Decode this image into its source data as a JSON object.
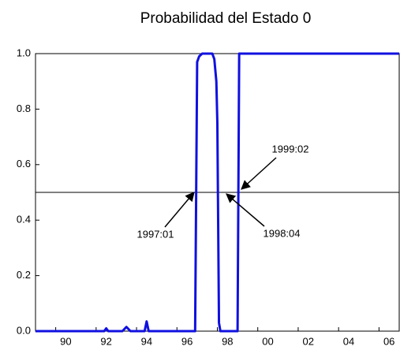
{
  "chart_data": {
    "type": "line",
    "title": "Probabilidad del Estado 0",
    "x": [
      1989.0,
      1992.4,
      1992.5,
      1992.6,
      1993.3,
      1993.5,
      1993.7,
      1994.4,
      1994.5,
      1994.6,
      1996.9,
      1997.0,
      1997.1,
      1997.25,
      1997.75,
      1997.85,
      1997.95,
      1998.0,
      1998.08,
      1998.15,
      1999.0,
      1999.08,
      2007.0
    ],
    "series": [
      {
        "color": "#1010e0",
        "values": [
          0,
          0,
          0.01,
          0,
          0,
          0.015,
          0,
          0,
          0.035,
          0,
          0,
          0.97,
          0.99,
          1,
          1,
          0.98,
          0.9,
          0.75,
          0.03,
          0,
          0,
          1,
          1
        ]
      }
    ],
    "xlim": [
      1989,
      2007
    ],
    "xticks": [
      {
        "value": 1990,
        "label": "90"
      },
      {
        "value": 1992,
        "label": "92"
      },
      {
        "value": 1994,
        "label": "94"
      },
      {
        "value": 1996,
        "label": "96"
      },
      {
        "value": 1998,
        "label": "98"
      },
      {
        "value": 2000,
        "label": "00"
      },
      {
        "value": 2002,
        "label": "02"
      },
      {
        "value": 2004,
        "label": "04"
      },
      {
        "value": 2006,
        "label": "06"
      }
    ],
    "ylim": [
      0,
      1
    ],
    "yticks": [
      {
        "value": 0,
        "label": "0.0"
      },
      0.2,
      0.4,
      0.6,
      0.8,
      {
        "value": 1,
        "label": "1.0"
      }
    ],
    "hline": 0.5,
    "annotations": [
      {
        "text": "1997:01"
      },
      {
        "text": "1998:04"
      },
      {
        "text": "1999:02"
      }
    ]
  }
}
